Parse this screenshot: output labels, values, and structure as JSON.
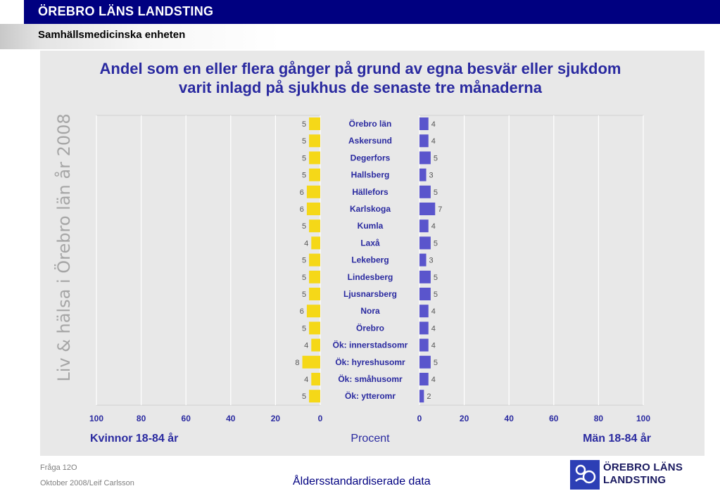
{
  "header": {
    "organization": "ÖREBRO LÄNS LANDSTING",
    "unit": "Samhällsmedicinska enheten"
  },
  "side_title": "Liv & hälsa i Örebro län år 2008",
  "chart_data": {
    "type": "bar",
    "orientation": "horizontal-butterfly",
    "title": "Andel som en eller flera gånger på grund av egna besvär eller sjukdom varit inlagd på sjukhus de senaste tre månaderna",
    "title_lines": [
      "Andel som en eller flera gånger på grund av egna besvär eller sjukdom",
      "varit inlagd på sjukhus de senaste tre månaderna"
    ],
    "categories": [
      "Örebro län",
      "Askersund",
      "Degerfors",
      "Hallsberg",
      "Hällefors",
      "Karlskoga",
      "Kumla",
      "Laxå",
      "Lekeberg",
      "Lindesberg",
      "Ljusnarsberg",
      "Nora",
      "Örebro",
      "Ök: innerstadsomr",
      "Ök: hyreshusomr",
      "Ök: småhusomr",
      "Ök: ytteromr"
    ],
    "series": [
      {
        "name": "Kvinnor 18-84 år",
        "color": "#f5d818",
        "values": [
          5,
          5,
          5,
          5,
          6,
          6,
          5,
          4,
          5,
          5,
          5,
          6,
          5,
          4,
          8,
          4,
          5
        ]
      },
      {
        "name": "Män 18-84 år",
        "color": "#5a55cc",
        "values": [
          4,
          4,
          5,
          3,
          5,
          7,
          4,
          5,
          3,
          5,
          5,
          4,
          4,
          4,
          5,
          4,
          2
        ]
      }
    ],
    "xlabel": "Procent",
    "xlim": [
      0,
      100
    ],
    "ticks": [
      0,
      20,
      40,
      60,
      80,
      100
    ],
    "tick_labels_left": [
      "100",
      "80",
      "60",
      "40",
      "20",
      "0"
    ],
    "tick_labels_right": [
      "0",
      "20",
      "40",
      "60",
      "80",
      "100"
    ],
    "grid": true,
    "grid_color": "#ffffff",
    "label_color": "#2a2aa0"
  },
  "footer": {
    "question": "Fråga 12O",
    "author": "Oktober 2008/Leif Carlsson",
    "note": "Åldersstandardiserade data",
    "logo_line1": "ÖREBRO LÄNS",
    "logo_line2": "LANDSTING"
  }
}
